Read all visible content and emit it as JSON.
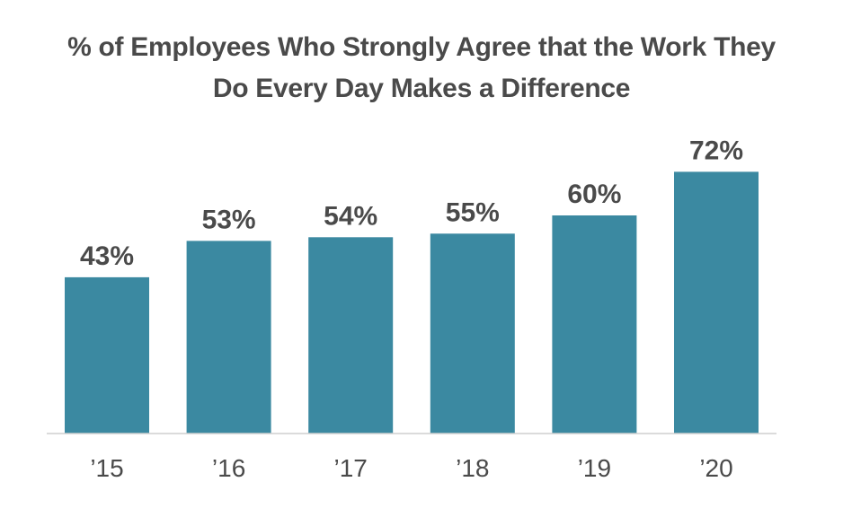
{
  "chart_data": {
    "type": "bar",
    "title_lines": [
      "% of Employees Who Strongly Agree that the Work They",
      "Do Every Day Makes a Difference"
    ],
    "categories": [
      "’15",
      "’16",
      "’17",
      "’18",
      "’19",
      "’20"
    ],
    "values": [
      43,
      53,
      54,
      55,
      60,
      72
    ],
    "value_labels": [
      "43%",
      "53%",
      "54%",
      "55%",
      "60%",
      "72%"
    ],
    "ylim": [
      0,
      100
    ],
    "grid": false,
    "legend": "none",
    "bar_color": "#3b89a1",
    "axis_color": "#cfcfcf",
    "text_color": "#4a4a4a"
  }
}
